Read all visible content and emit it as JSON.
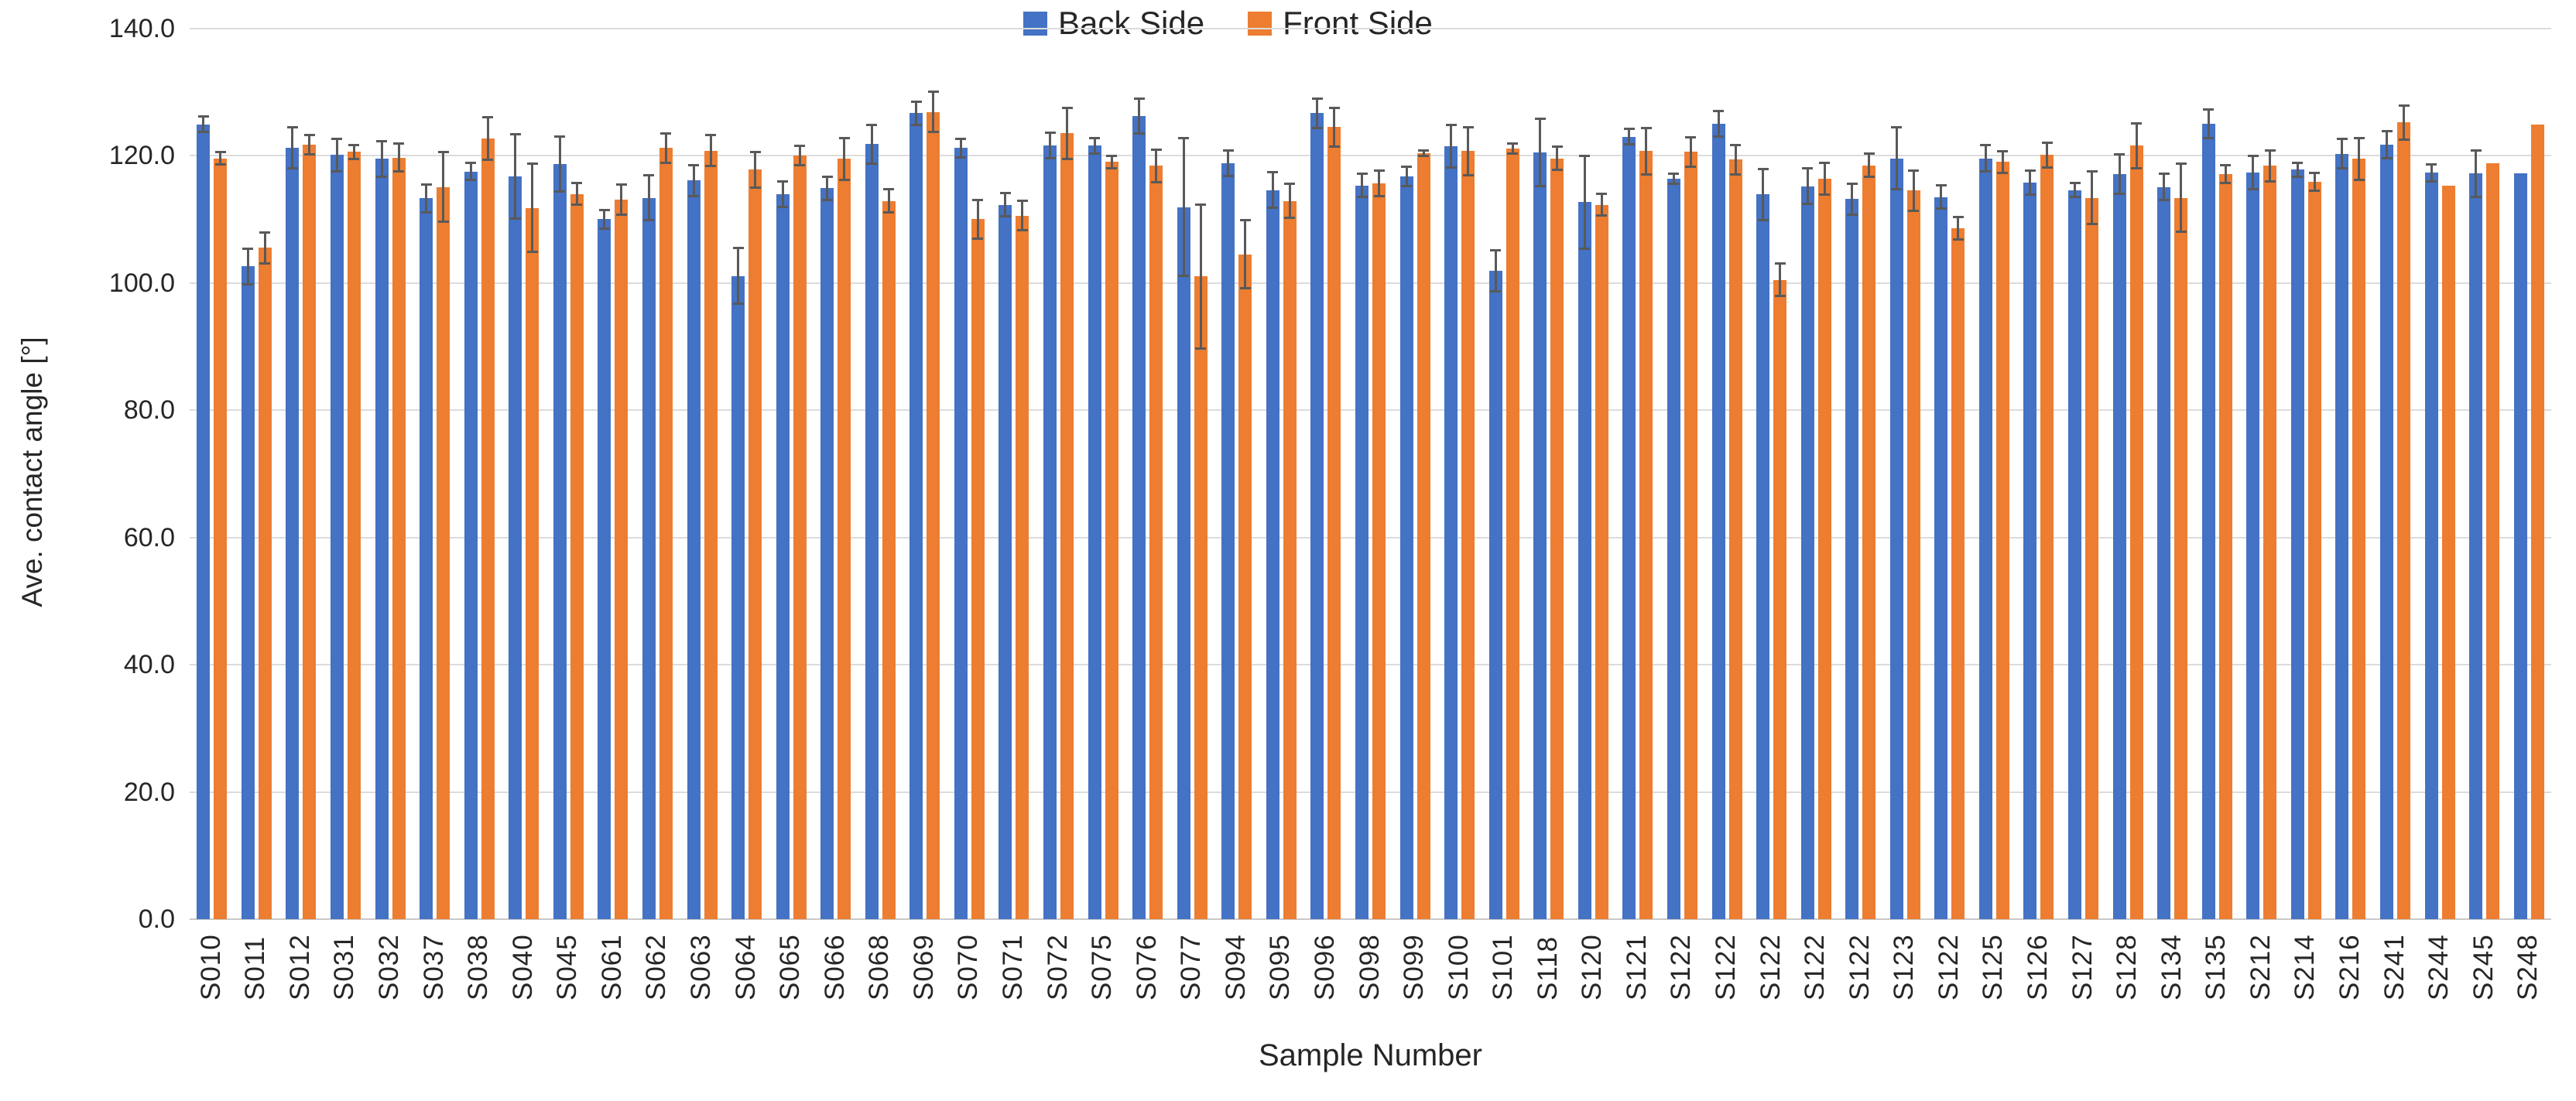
{
  "chart_data": {
    "type": "bar",
    "title": "",
    "xlabel": "Sample Number",
    "ylabel": "Ave. contact angle [°]",
    "ylim": [
      0,
      140
    ],
    "y_tick_step": 20,
    "y_tick_labels": [
      "0.0",
      "20.0",
      "40.0",
      "60.0",
      "80.0",
      "100.0",
      "120.0",
      "140.0"
    ],
    "grid": true,
    "legend_position": "top-center",
    "gridline_color": "#dcdcdc",
    "error_bar_color": "#595959",
    "categories": [
      "S010",
      "S011",
      "S012",
      "S031",
      "S032",
      "S037",
      "S038",
      "S040",
      "S045",
      "S061",
      "S062",
      "S063",
      "S064",
      "S065",
      "S066",
      "S068",
      "S069",
      "S070",
      "S071",
      "S072",
      "S075",
      "S076",
      "S077",
      "S094",
      "S095",
      "S096",
      "S098",
      "S099",
      "S100",
      "S101",
      "S118",
      "S120",
      "S121",
      "S122",
      "S122",
      "S122",
      "S122",
      "S122",
      "S123",
      "S122",
      "S125",
      "S126",
      "S127",
      "S128",
      "S134",
      "S135",
      "S212",
      "S214",
      "S216",
      "S241",
      "S244",
      "S245",
      "S248"
    ],
    "series": [
      {
        "name": "Back Side",
        "color": "#4472C4",
        "values": [
          124.9,
          102.6,
          121.2,
          120.1,
          119.5,
          113.3,
          117.5,
          116.7,
          118.7,
          110.0,
          113.4,
          116.1,
          101.1,
          113.9,
          114.9,
          121.8,
          126.7,
          121.2,
          112.3,
          121.6,
          121.6,
          126.2,
          111.9,
          118.8,
          114.6,
          126.7,
          115.3,
          116.8,
          121.5,
          101.9,
          120.5,
          112.7,
          123.0,
          116.4,
          125.0,
          113.9,
          115.2,
          113.2,
          119.6,
          113.5,
          119.6,
          115.8,
          114.6,
          117.1,
          115.1,
          125.0,
          117.3,
          117.8,
          120.3,
          121.7,
          117.3,
          117.2,
          117.2
        ],
        "errors": [
          1.4,
          3.0,
          3.4,
          2.7,
          3.0,
          2.4,
          1.5,
          6.8,
          4.5,
          1.7,
          3.7,
          2.6,
          4.6,
          2.2,
          2.0,
          3.2,
          2.0,
          1.6,
          2.0,
          2.2,
          1.4,
          2.9,
          11.0,
          2.2,
          3.0,
          2.5,
          2.0,
          1.7,
          3.5,
          3.4,
          5.5,
          7.5,
          1.4,
          1.0,
          2.2,
          4.2,
          3.0,
          2.6,
          5.0,
          2.0,
          2.3,
          2.1,
          1.3,
          3.3,
          2.3,
          2.4,
          2.8,
          1.3,
          2.5,
          2.3,
          1.5,
          3.8,
          0
        ]
      },
      {
        "name": "Front Side",
        "color": "#ED7D31",
        "values": [
          119.6,
          105.5,
          121.7,
          120.6,
          119.7,
          115.1,
          122.7,
          111.8,
          114.0,
          113.1,
          121.2,
          120.8,
          117.8,
          120.0,
          119.5,
          112.9,
          126.9,
          110.0,
          110.6,
          123.5,
          119.0,
          118.4,
          101.0,
          104.5,
          112.9,
          124.5,
          115.7,
          120.4,
          120.7,
          121.1,
          119.6,
          112.3,
          120.7,
          120.6,
          119.4,
          100.5,
          116.4,
          118.5,
          114.5,
          108.6,
          119.0,
          120.1,
          113.4,
          121.6,
          113.4,
          117.1,
          118.4,
          115.9,
          119.5,
          125.2,
          115.3,
          118.8,
          124.9
        ],
        "errors": [
          1.1,
          2.6,
          1.7,
          1.3,
          2.4,
          5.6,
          3.5,
          7.1,
          1.9,
          2.5,
          2.5,
          2.6,
          3.0,
          1.7,
          3.5,
          2.0,
          3.3,
          3.2,
          2.5,
          4.2,
          1.1,
          2.7,
          11.5,
          5.5,
          2.9,
          3.2,
          2.2,
          0.6,
          4.0,
          1.0,
          2.0,
          1.9,
          3.8,
          2.5,
          2.5,
          2.7,
          2.7,
          2.0,
          3.3,
          1.9,
          1.9,
          2.1,
          4.3,
          3.7,
          5.5,
          1.6,
          2.6,
          1.6,
          3.5,
          2.8,
          0,
          0,
          0
        ]
      }
    ]
  },
  "legend": {
    "back_label": "Back Side",
    "front_label": "Front Side"
  },
  "axes": {
    "x_title": "Sample Number",
    "y_title": "Ave. contact angle [°]"
  }
}
